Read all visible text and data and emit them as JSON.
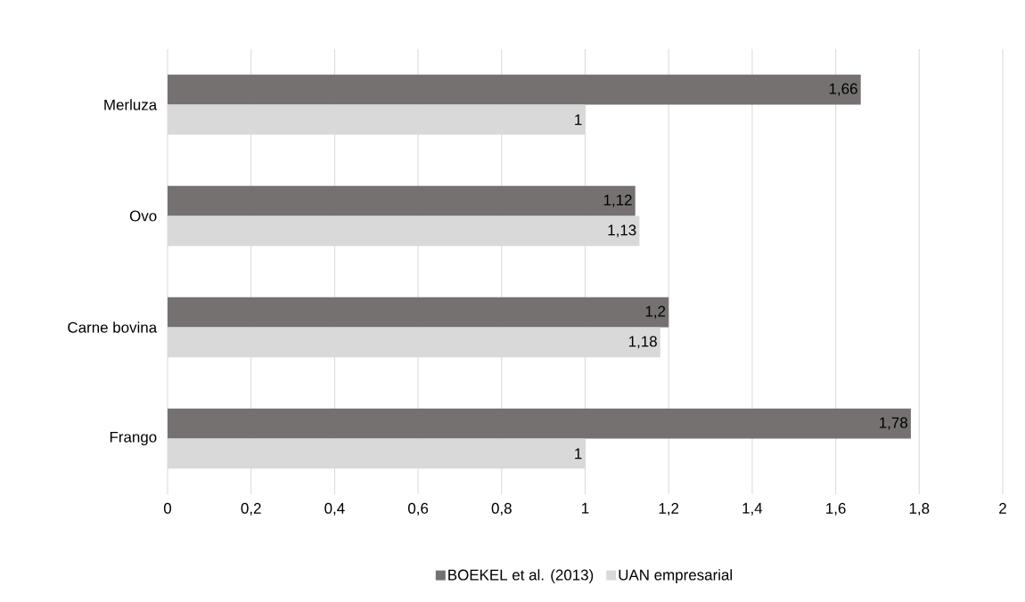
{
  "chart_data": {
    "type": "bar",
    "orientation": "horizontal",
    "categories": [
      "Merluza",
      "Ovo",
      "Carne bovina",
      "Frango"
    ],
    "series": [
      {
        "name": "BOEKEL et al. (2013)",
        "color": "#767171",
        "values": [
          1.66,
          1.12,
          1.2,
          1.78
        ],
        "value_labels": [
          "1,66",
          "1,12",
          "1,2",
          "1,78"
        ]
      },
      {
        "name": "UAN empresarial",
        "color": "#d9d9d9",
        "values": [
          1,
          1.13,
          1.18,
          1
        ],
        "value_labels": [
          "1",
          "1,13",
          "1,18",
          "1"
        ]
      }
    ],
    "xlim": [
      0,
      2
    ],
    "xticks": [
      0,
      {
        "value": 0.2,
        "label": "0,2"
      },
      {
        "value": 0.4,
        "label": "0,4"
      },
      {
        "value": 0.6,
        "label": "0,6"
      },
      {
        "value": 0.8,
        "label": "0,8"
      },
      1,
      {
        "value": 1.2,
        "label": "1,2"
      },
      {
        "value": 1.4,
        "label": "1,4"
      },
      {
        "value": 1.6,
        "label": "1,6"
      },
      {
        "value": 1.8,
        "label": "1,8"
      },
      2
    ],
    "grid": "x",
    "legend": "bottom"
  }
}
